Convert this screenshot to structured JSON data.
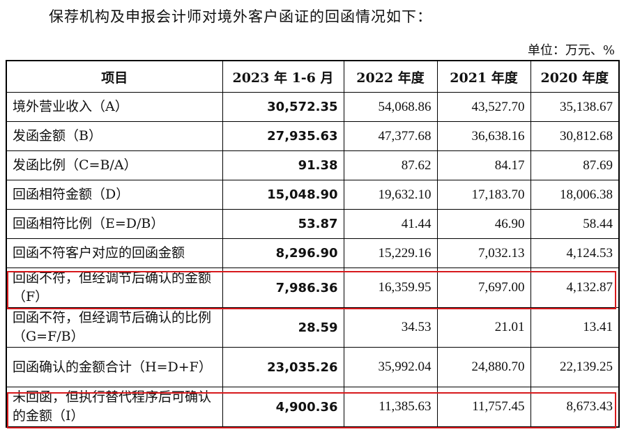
{
  "intro": "保荐机构及申报会计师对境外客户函证的回函情况如下：",
  "unit": "单位：万元、%",
  "headers": [
    "项目",
    "2023 年 1-6 月",
    "2022 年度",
    "2021 年度",
    "2020 年度"
  ],
  "rows": [
    {
      "label": "境外营业收入（A）",
      "v": [
        "30,572.35",
        "54,068.86",
        "43,527.70",
        "35,138.67"
      ]
    },
    {
      "label": "发函金额（B）",
      "v": [
        "27,935.63",
        "47,377.68",
        "36,638.16",
        "30,812.68"
      ]
    },
    {
      "label": "发函比例（C=B/A）",
      "v": [
        "91.38",
        "87.62",
        "84.17",
        "87.69"
      ]
    },
    {
      "label": "回函相符金额（D）",
      "v": [
        "15,048.90",
        "19,632.10",
        "17,183.70",
        "18,006.38"
      ]
    },
    {
      "label": "回函相符比例（E=D/B）",
      "v": [
        "53.87",
        "41.44",
        "46.90",
        "58.44"
      ]
    },
    {
      "label": "回函不符客户对应的回函金额",
      "v": [
        "8,296.90",
        "15,229.16",
        "7,032.13",
        "4,124.53"
      ]
    },
    {
      "label": "回函不符，但经调节后确认的金额（F）",
      "v": [
        "7,986.36",
        "16,359.95",
        "7,697.00",
        "4,132.87"
      ]
    },
    {
      "label": "回函不符，但经调节后确认的比例（G=F/B）",
      "v": [
        "28.59",
        "34.53",
        "21.01",
        "13.41"
      ]
    },
    {
      "label": "回函确认的金额合计（H=D+F）",
      "v": [
        "23,035.26",
        "35,992.04",
        "24,880.70",
        "22,139.25"
      ]
    },
    {
      "label": "未回函，但执行替代程序后可确认的金额（I）",
      "v": [
        "4,900.36",
        "11,385.63",
        "11,757.45",
        "8,673.43"
      ]
    }
  ]
}
